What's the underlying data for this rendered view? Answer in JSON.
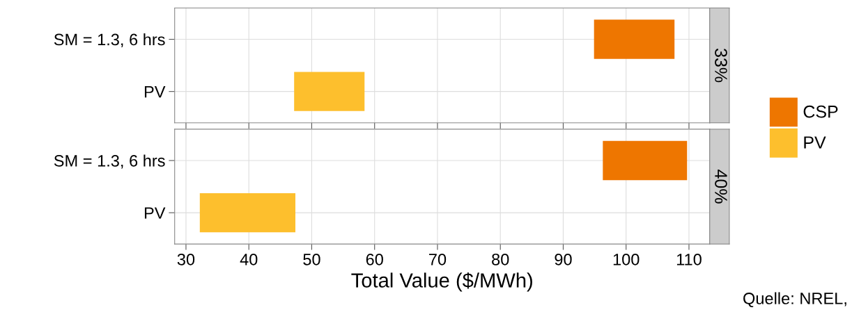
{
  "chart_data": [
    {
      "type": "bar",
      "orientation": "horizontal",
      "title": "33%",
      "categories": [
        "SM = 1.3, 6 hrs",
        "PV"
      ],
      "series": [
        {
          "name": "CSP",
          "color": "#ee7600",
          "values": [
            12.8,
            null
          ],
          "base": [
            94.9,
            null
          ]
        },
        {
          "name": "PV",
          "color": "#fdbf2d",
          "values": [
            null,
            11.2
          ],
          "base": [
            null,
            47.2
          ]
        }
      ],
      "xlim": [
        28.2,
        113.3
      ],
      "xticks": [
        30,
        40,
        50,
        60,
        70,
        80,
        90,
        100,
        110
      ],
      "tick_labels": "y",
      "grid": true,
      "legend": "right"
    },
    {
      "type": "bar",
      "orientation": "horizontal",
      "title": "40%",
      "categories": [
        "SM = 1.3, 6 hrs",
        "PV"
      ],
      "series": [
        {
          "name": "CSP",
          "color": "#ee7600",
          "values": [
            13.4,
            null
          ],
          "base": [
            96.3,
            null
          ]
        },
        {
          "name": "PV",
          "color": "#fdbf2d",
          "values": [
            null,
            15.2
          ],
          "base": [
            null,
            32.2
          ]
        }
      ],
      "xlim": [
        28.2,
        113.3
      ],
      "xticks": [
        30,
        40,
        50,
        60,
        70,
        80,
        90,
        100,
        110
      ],
      "xlabel": "Total Value ($/MWh)",
      "grid": true,
      "legend": "right",
      "annotations": [
        "Quelle: NREL,"
      ]
    }
  ]
}
